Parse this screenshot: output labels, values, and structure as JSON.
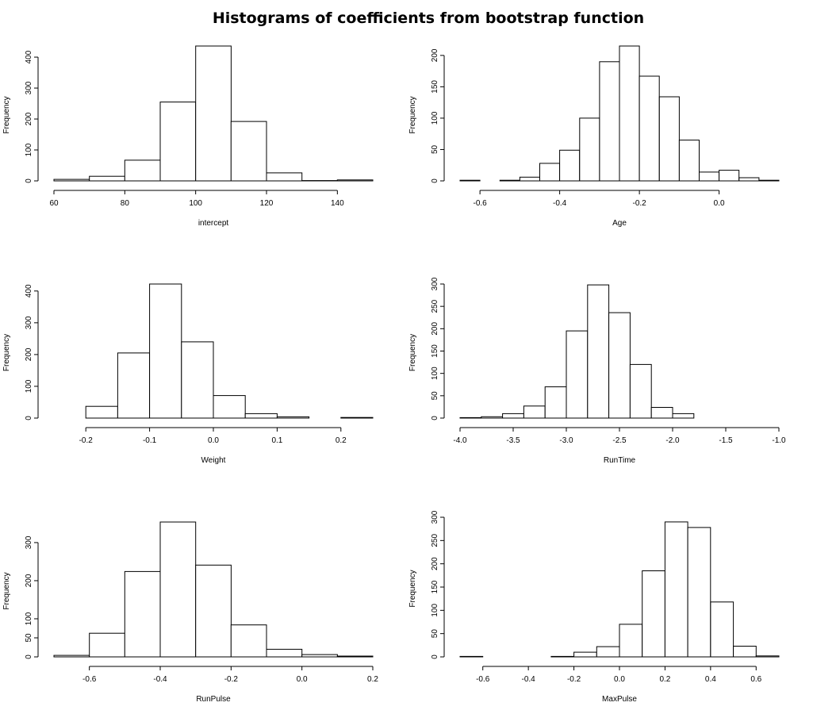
{
  "title": "Histograms of coefficients from bootstrap function",
  "chart_data": [
    {
      "type": "histogram",
      "xlabel": "intercept",
      "ylabel": "Frequency",
      "bin_edges": [
        60,
        70,
        80,
        90,
        100,
        110,
        120,
        130,
        140,
        150
      ],
      "counts": [
        5,
        15,
        67,
        255,
        436,
        192,
        26,
        1,
        3
      ],
      "xticks": [
        60,
        80,
        100,
        120,
        140
      ],
      "xlim": [
        60,
        150
      ],
      "yticks": [
        0,
        100,
        200,
        300,
        400
      ],
      "ylim": [
        0,
        436
      ]
    },
    {
      "type": "histogram",
      "xlabel": "Age",
      "ylabel": "Frequency",
      "bin_edges": [
        -0.65,
        -0.6,
        -0.55,
        -0.5,
        -0.45,
        -0.4,
        -0.35,
        -0.3,
        -0.25,
        -0.2,
        -0.15,
        -0.1,
        -0.05,
        0.0,
        0.05,
        0.1,
        0.15
      ],
      "counts": [
        1,
        0,
        1,
        6,
        28,
        49,
        100,
        190,
        215,
        167,
        134,
        65,
        14,
        17,
        5,
        1
      ],
      "xticks": [
        -0.6,
        -0.4,
        -0.2,
        0.0
      ],
      "xlim": [
        -0.65,
        0.15
      ],
      "yticks": [
        0,
        50,
        100,
        150,
        200
      ],
      "ylim": [
        0,
        215
      ]
    },
    {
      "type": "histogram",
      "xlabel": "Weight",
      "ylabel": "Frequency",
      "bin_edges": [
        -0.2,
        -0.15,
        -0.1,
        -0.05,
        0.0,
        0.05,
        0.1,
        0.15,
        0.2,
        0.25
      ],
      "counts": [
        37,
        205,
        422,
        240,
        71,
        14,
        4,
        0,
        2
      ],
      "xticks": [
        -0.2,
        -0.1,
        0.0,
        0.1,
        0.2
      ],
      "xlim": [
        -0.25,
        0.25
      ],
      "yticks": [
        0,
        100,
        200,
        300,
        400
      ],
      "ylim": [
        0,
        422
      ]
    },
    {
      "type": "histogram",
      "xlabel": "RunTime",
      "ylabel": "Frequency",
      "bin_edges": [
        -4.0,
        -3.8,
        -3.6,
        -3.4,
        -3.2,
        -3.0,
        -2.8,
        -2.6,
        -2.4,
        -2.2,
        -2.0,
        -1.8
      ],
      "counts": [
        1,
        3,
        10,
        27,
        70,
        195,
        298,
        236,
        120,
        24,
        10
      ],
      "xticks": [
        -4.0,
        -3.5,
        -3.0,
        -2.5,
        -2.0,
        -1.5,
        -1.0
      ],
      "xlim": [
        -4.0,
        -1.0
      ],
      "yticks": [
        0,
        50,
        100,
        150,
        200,
        250,
        300
      ],
      "ylim": [
        0,
        300
      ]
    },
    {
      "type": "histogram",
      "xlabel": "RunPulse",
      "ylabel": "Frequency",
      "bin_edges": [
        -0.7,
        -0.6,
        -0.5,
        -0.4,
        -0.3,
        -0.2,
        -0.1,
        0.0,
        0.1,
        0.2
      ],
      "counts": [
        4,
        62,
        224,
        354,
        241,
        84,
        20,
        6,
        2
      ],
      "xticks": [
        -0.6,
        -0.4,
        -0.2,
        0.0,
        0.2
      ],
      "xlim": [
        -0.7,
        0.2
      ],
      "yticks": [
        0,
        50,
        100,
        200,
        300
      ],
      "ylim": [
        0,
        354
      ]
    },
    {
      "type": "histogram",
      "xlabel": "MaxPulse",
      "ylabel": "Frequency",
      "bin_edges": [
        -0.7,
        -0.6,
        -0.5,
        -0.4,
        -0.3,
        -0.2,
        -0.1,
        0.0,
        0.1,
        0.2,
        0.3,
        0.4,
        0.5,
        0.6,
        0.7
      ],
      "counts": [
        1,
        0,
        0,
        0,
        1,
        10,
        22,
        70,
        185,
        290,
        278,
        118,
        23,
        2
      ],
      "xticks": [
        -0.6,
        -0.4,
        -0.2,
        0.0,
        0.2,
        0.4,
        0.6
      ],
      "xlim": [
        -0.7,
        0.7
      ],
      "yticks": [
        0,
        50,
        100,
        150,
        200,
        250,
        300
      ],
      "ylim": [
        0,
        300
      ]
    }
  ]
}
